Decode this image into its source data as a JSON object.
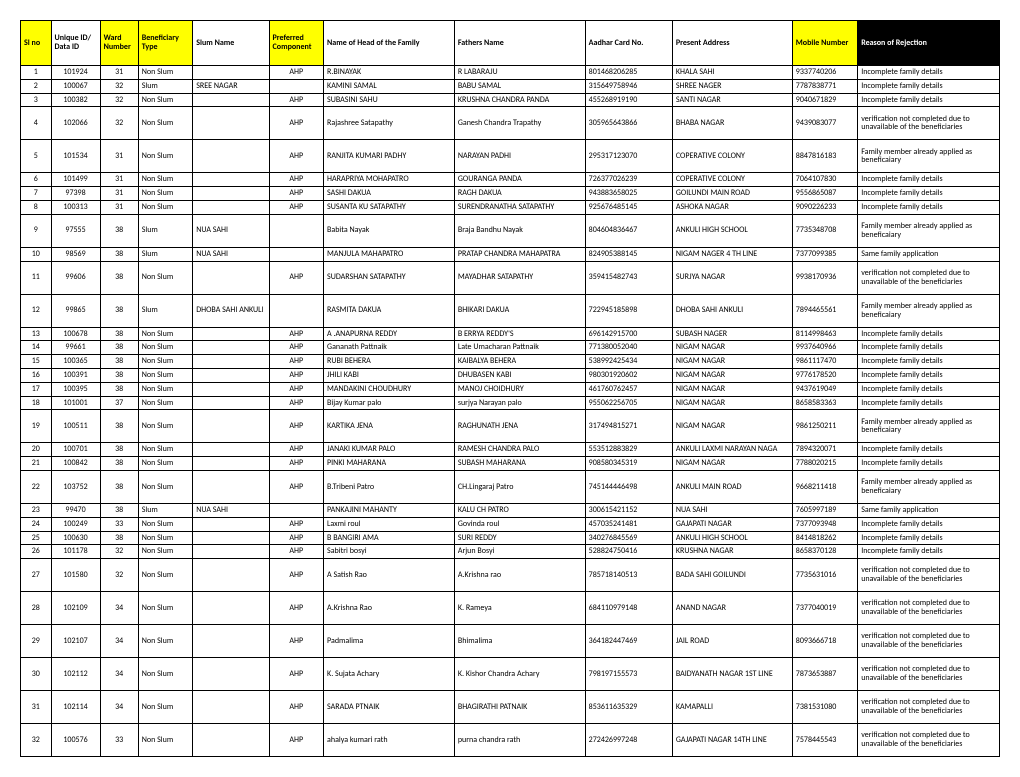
{
  "columns": [
    {
      "label": "Sl no",
      "cls": "hdr-yellow",
      "colcls": "col-sl"
    },
    {
      "label": "Unique ID/ Data ID",
      "cls": "hdr-white",
      "colcls": "col-uid"
    },
    {
      "label": "Ward Number",
      "cls": "hdr-yellow",
      "colcls": "col-ward"
    },
    {
      "label": "Beneficiary Type",
      "cls": "hdr-yellow",
      "colcls": "col-btype"
    },
    {
      "label": "Slum Name",
      "cls": "hdr-white",
      "colcls": "col-slum"
    },
    {
      "label": "Preferred Component",
      "cls": "hdr-yellow",
      "colcls": "col-pref"
    },
    {
      "label": "Name of Head of the Family",
      "cls": "hdr-white",
      "colcls": "col-head"
    },
    {
      "label": "Fathers Name",
      "cls": "hdr-white",
      "colcls": "col-father"
    },
    {
      "label": "Aadhar Card No.",
      "cls": "hdr-white",
      "colcls": "col-aadhar"
    },
    {
      "label": "Present Address",
      "cls": "hdr-white",
      "colcls": "col-addr"
    },
    {
      "label": "Mobile Number",
      "cls": "hdr-yellow",
      "colcls": "col-mobile"
    },
    {
      "label": "Reason of Rejection",
      "cls": "hdr-black",
      "colcls": "col-reason"
    }
  ],
  "rows": [
    [
      "1",
      "101924",
      "31",
      "Non Slum",
      "",
      "AHP",
      "R.BINAYAK",
      "R LABARAJU",
      "801468206285",
      "KHALA SAHI",
      "9337740206",
      "Incomplete family details"
    ],
    [
      "2",
      "100067",
      "32",
      "Slum",
      "SREE NAGAR",
      "",
      "KAMINI SAMAL",
      "BABU SAMAL",
      "315649758946",
      "SHREE NAGER",
      "7787838771",
      "Incomplete family details"
    ],
    [
      "3",
      "100382",
      "32",
      "Non Slum",
      "",
      "AHP",
      "SUBASINI SAHU",
      "KRUSHNA CHANDRA PANDA",
      "455268919190",
      "SANTI NAGAR",
      "9040671829",
      "Incomplete family details"
    ],
    [
      "4",
      "102066",
      "32",
      "Non Slum",
      "",
      "AHP",
      "Rajashree Satapathy",
      "Ganesh Chandra Trapathy",
      "305965643866",
      "BHABA NAGAR",
      "9439083077",
      "verification not completed due to unavailable of the beneficiaries"
    ],
    [
      "5",
      "101534",
      "31",
      "Non Slum",
      "",
      "AHP",
      "RANJITA KUMARI PADHY",
      "NARAYAN PADHI",
      "295317123070",
      "COPERATIVE COLONY",
      "8847816183",
      "Family member already applied as beneficaiary"
    ],
    [
      "6",
      "101499",
      "31",
      "Non Slum",
      "",
      "AHP",
      "HARAPRIYA MOHAPATRO",
      "GOURANGA PANDA",
      "726377026239",
      "COPERATIVE COLONY",
      "7064107830",
      "Incomplete family details"
    ],
    [
      "7",
      "97398",
      "31",
      "Non Slum",
      "",
      "AHP",
      "SASHI DAKUA",
      "RAGH DAKUA",
      "943883658025",
      "GOILUNDI MAIN ROAD",
      "9556865087",
      "Incomplete family details"
    ],
    [
      "8",
      "100313",
      "31",
      "Non Slum",
      "",
      "AHP",
      "SUSANTA KU SATAPATHY",
      "SURENDRANATHA SATAPATHY",
      "925676485145",
      "ASHOKA NAGAR",
      "9090226233",
      "Incomplete family details"
    ],
    [
      "9",
      "97555",
      "38",
      "Slum",
      "NUA SAHI",
      "",
      "Babita Nayak",
      "Braja Bandhu Nayak",
      "804604836467",
      "ANKULI HIGH SCHOOL",
      "7735348708",
      "Family member already applied as beneficaiary"
    ],
    [
      "10",
      "98569",
      "38",
      "Slum",
      "NUA SAHI",
      "",
      "MANJULA MAHAPATRO",
      "PRATAP CHANDRA MAHAPATRA",
      "824905388145",
      "NIGAM NAGER  4 TH LINE",
      "7377099385",
      "Same family application"
    ],
    [
      "11",
      "99606",
      "38",
      "Non Slum",
      "",
      "AHP",
      "SUDARSHAN SATAPATHY",
      "MAYADHAR SATAPATHY",
      "359415482743",
      "SURJYA NAGAR",
      "9938170936",
      "verification not completed due to unavailable of the beneficiaries"
    ],
    [
      "12",
      "99865",
      "38",
      "Slum",
      "DHOBA  SAHI ANKULI",
      "",
      "RASMITA DAKUA",
      "BHIKARI DAKUA",
      "722945185898",
      "DHOBA  SAHI  ANKULI",
      "7894465561",
      "Family member already applied as beneficaiary"
    ],
    [
      "13",
      "100678",
      "38",
      "Non Slum",
      "",
      "AHP",
      "A .ANAPURNA REDDY",
      "B ERRYA REDDY'S",
      "696142915700",
      "SUBASH NAGER",
      "8114998463",
      "Incomplete family details"
    ],
    [
      "14",
      "99661",
      "38",
      "Non Slum",
      "",
      "AHP",
      "Gananath Pattnaik",
      "Late Umacharan Pattnaik",
      "771380052040",
      "NIGAM NAGAR",
      "9937640966",
      "Incomplete family details"
    ],
    [
      "15",
      "100365",
      "38",
      "Non Slum",
      "",
      "AHP",
      "RUBI BEHERA",
      "KAIBALYA BEHERA",
      "538992425434",
      "NIGAM NAGAR",
      "9861117470",
      "Incomplete family details"
    ],
    [
      "16",
      "100391",
      "38",
      "Non Slum",
      "",
      "AHP",
      "JHILI KABI",
      "DHUBASEN KABI",
      "980301920602",
      "NIGAM NAGAR",
      "9776178520",
      "Incomplete family details"
    ],
    [
      "17",
      "100395",
      "38",
      "Non Slum",
      "",
      "AHP",
      "MANDAKINI CHOUDHURY",
      "MANOJ CHOIDHURY",
      "461760762457",
      "NIGAM NAGAR",
      "9437619049",
      "Incomplete family details"
    ],
    [
      "18",
      "101001",
      "37",
      "Non Slum",
      "",
      "AHP",
      "Bijay Kumar palo",
      "surjya Narayan palo",
      "955062256705",
      "NIGAM NAGAR",
      "8658583363",
      "Incomplete family details"
    ],
    [
      "19",
      "100511",
      "38",
      "Non Slum",
      "",
      "AHP",
      "KARTIKA JENA",
      "RAGHUNATH JENA",
      "317494815271",
      "NIGAM NAGAR",
      "9861250211",
      "Family member already applied as beneficaiary"
    ],
    [
      "20",
      "100701",
      "38",
      "Non Slum",
      "",
      "AHP",
      "JANAKI KUMAR PALO",
      "RAMESH CHANDRA PALO",
      "553512883829",
      "ANKULI LAXMI NARAYAN NAGA",
      "7894320071",
      "Incomplete family details"
    ],
    [
      "21",
      "100842",
      "38",
      "Non Slum",
      "",
      "AHP",
      "PINKI MAHARANA",
      "SUBASH MAHARANA",
      "908580345319",
      "NIGAM NAGAR",
      "7788020215",
      "Incomplete family details"
    ],
    [
      "22",
      "103752",
      "38",
      "Non Slum",
      "",
      "AHP",
      "B.Tribeni Patro",
      "CH.Lingaraj Patro",
      "745144446498",
      "ANKULI MAIN ROAD",
      "9668211418",
      "Family member already applied as beneficaiary"
    ],
    [
      "23",
      "99470",
      "38",
      "Slum",
      "NUA SAHI",
      "",
      "PANKAJINI MAHANTY",
      "KALU CH PATRO",
      "300615421152",
      "NUA SAHI",
      "7605997189",
      "Same family application"
    ],
    [
      "24",
      "100249",
      "33",
      "Non Slum",
      "",
      "AHP",
      "Laxmi roul",
      "Govinda roul",
      "457035241481",
      "GAJAPATI NAGAR",
      "7377093948",
      "Incomplete family details"
    ],
    [
      "25",
      "100630",
      "38",
      "Non Slum",
      "",
      "AHP",
      "B BANGIRI AMA",
      "SURI REDDY",
      "340276845569",
      "ANKULI  HIGH SCHOOL",
      "8414818262",
      "Incomplete family details"
    ],
    [
      "26",
      "101178",
      "32",
      "Non Slum",
      "",
      "AHP",
      "Sabitri bosyi",
      "Arjun Bosyi",
      "528824750416",
      "KRUSHNA NAGAR",
      "8658370128",
      "Incomplete family details"
    ],
    [
      "27",
      "101580",
      "32",
      "Non Slum",
      "",
      "AHP",
      "A Satish Rao",
      "A.Krishna rao",
      "785718140513",
      "BADA SAHI GOILUNDI",
      "7735631016",
      "verification not completed due to unavailable of the beneficiaries"
    ],
    [
      "28",
      "102109",
      "34",
      "Non Slum",
      "",
      "AHP",
      "A.Krishna Rao",
      "K. Rameya",
      "684110979148",
      "ANAND NAGAR",
      "7377040019",
      "verification not completed due to unavailable of the beneficiaries"
    ],
    [
      "29",
      "102107",
      "34",
      "Non Slum",
      "",
      "AHP",
      "Padmalima",
      "Bhimalima",
      "364182447469",
      "JAIL ROAD",
      "8093666718",
      "verification not completed due to unavailable of the beneficiaries"
    ],
    [
      "30",
      "102112",
      "34",
      "Non Slum",
      "",
      "AHP",
      "K. Sujata Achary",
      "K. Kishor Chandra Achary",
      "798197155573",
      "BAIDYANATH NAGAR 1ST LINE",
      "7873653887",
      "verification not completed due to unavailable of the beneficiaries"
    ],
    [
      "31",
      "102114",
      "34",
      "Non Slum",
      "",
      "AHP",
      "SARADA PTNAIK",
      "BHAGIRATHI PATNAIK",
      "853611635329",
      "KAMAPALLI",
      "7381531080",
      "verification not completed due to unavailable of the beneficiaries"
    ],
    [
      "32",
      "100576",
      "33",
      "Non Slum",
      "",
      "AHP",
      "ahalya kumari rath",
      "purna chandra rath",
      "272426997248",
      "GAJAPATI NAGAR 14TH LINE",
      "7578445543",
      "verification not completed due to unavailable of the beneficiaries"
    ]
  ],
  "centerCols": [
    0,
    1,
    2,
    5
  ],
  "tallRows": [
    3,
    4,
    8,
    10,
    11,
    18,
    21,
    26,
    27,
    28,
    29,
    30,
    31
  ]
}
